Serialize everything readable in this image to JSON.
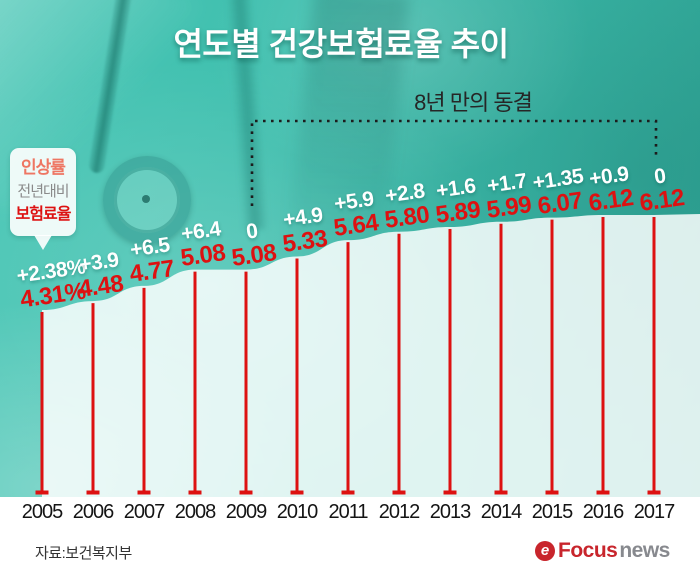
{
  "title": "연도별 건강보험료율 추이",
  "legend": {
    "increase": "인상률",
    "yoy": "전년대비",
    "rate": "보험료율"
  },
  "footer": {
    "source": "자료:보건복지부",
    "logo_icon": "focus-news-emblem",
    "logo_focus": "Focus",
    "logo_news": "news"
  },
  "colors": {
    "accent_red": "#dd1111",
    "teal_background": "#3fbfae",
    "area_fill": "rgba(255,255,255,0.84)",
    "increase_label": "#ffffff",
    "legend_increase": "#ee7663",
    "legend_yoy": "#8a8a8a",
    "dotted_line": "#1c1c1c",
    "logo_red": "#c8252c",
    "logo_gray": "#87898e"
  },
  "chart_data": {
    "type": "area",
    "title": "연도별 건강보험료율 추이",
    "categories": [
      2005,
      2006,
      2007,
      2008,
      2009,
      2010,
      2011,
      2012,
      2013,
      2014,
      2015,
      2016,
      2017
    ],
    "series": [
      {
        "name": "보험료율",
        "values": [
          4.31,
          4.48,
          4.77,
          5.08,
          5.08,
          5.33,
          5.64,
          5.8,
          5.89,
          5.99,
          6.07,
          6.12,
          6.12
        ],
        "labels": [
          "4.31%",
          "4.48",
          "4.77",
          "5.08",
          "5.08",
          "5.33",
          "5.64",
          "5.80",
          "5.89",
          "5.99",
          "6.07",
          "6.12",
          "6.12"
        ],
        "color": "#dd1111"
      },
      {
        "name": "전년대비 인상률",
        "values": [
          2.38,
          3.9,
          6.5,
          6.4,
          0,
          4.9,
          5.9,
          2.8,
          1.6,
          1.7,
          1.35,
          0.9,
          0
        ],
        "labels": [
          "+2.38%",
          "+3.9",
          "+6.5",
          "+6.4",
          "0",
          "+4.9",
          "+5.9",
          "+2.8",
          "+1.6",
          "+1.7",
          "+1.35",
          "+0.9",
          "0"
        ],
        "color": "#ffffff"
      }
    ],
    "annotation": {
      "text": "8년 만의 동결",
      "from_year": 2009,
      "to_year": 2017
    },
    "xlabel": "",
    "ylabel": "",
    "ylim": [
      4.0,
      6.5
    ],
    "grid": false,
    "legend_position": "left-bubble"
  }
}
